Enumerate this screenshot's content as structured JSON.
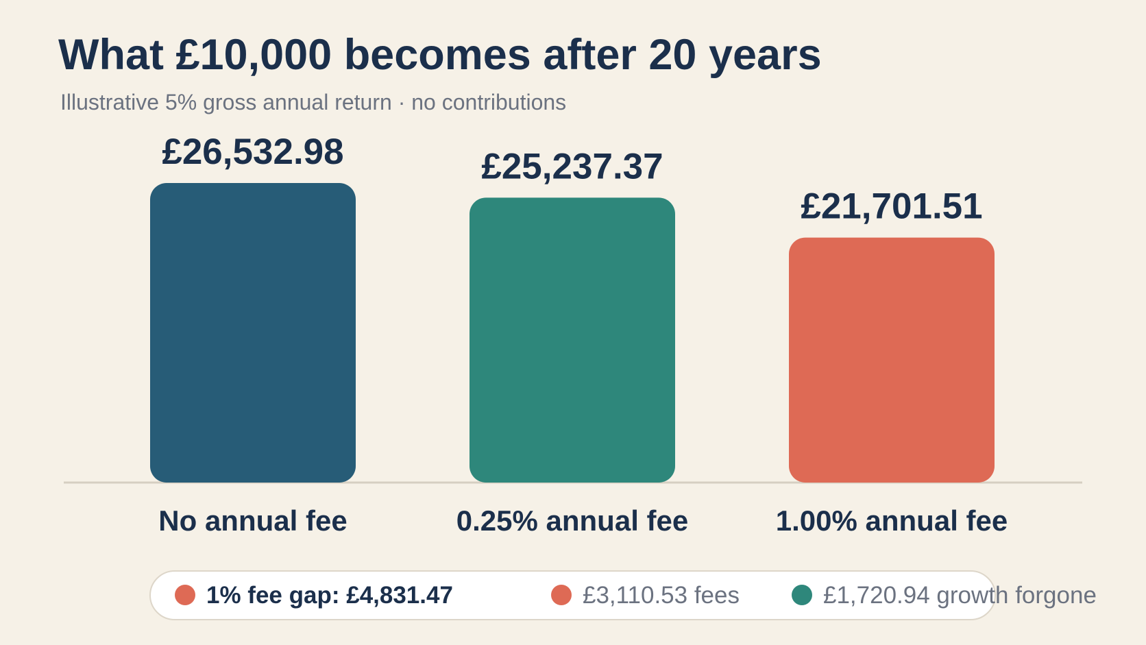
{
  "chart_data": {
    "type": "bar",
    "title": "What £10,000 becomes after 20 years",
    "subtitle": "Illustrative 5% gross annual return · no contributions",
    "categories": [
      "No annual fee",
      "0.25% annual fee",
      "1.00% annual fee"
    ],
    "values": [
      26532.98,
      25237.37,
      21701.51
    ],
    "value_labels": [
      "£26,532.98",
      "£25,237.37",
      "£21,701.51"
    ],
    "colors": [
      "#275c77",
      "#2e877b",
      "#de6a55"
    ],
    "annotations": [
      {
        "text": "1% fee gap: £4,831.47",
        "color": "#de6a55"
      },
      {
        "text": "£3,110.53 fees",
        "color": "#de6a55"
      },
      {
        "text": "£1,720.94 growth forgone",
        "color": "#2e877b"
      }
    ]
  }
}
